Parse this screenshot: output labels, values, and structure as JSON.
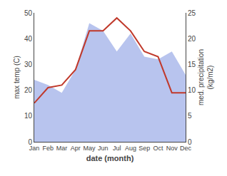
{
  "chart_data": {
    "type": "line",
    "categories": [
      "Jan",
      "Feb",
      "Mar",
      "Apr",
      "May",
      "Jun",
      "Jul",
      "Aug",
      "Sep",
      "Oct",
      "Nov",
      "Dec"
    ],
    "series": [
      {
        "type": "area",
        "color": "#b8c4ee",
        "values": [
          24,
          22,
          19,
          28,
          46,
          43,
          35,
          42,
          33,
          32,
          35,
          26
        ]
      },
      {
        "type": "line",
        "color": "#c0392b",
        "values": [
          15,
          21,
          22,
          28,
          43,
          43,
          48,
          43,
          35,
          33,
          19,
          19
        ]
      }
    ],
    "x_label": "date (month)",
    "y_label": "max temp (C)",
    "y2_label": "med. precipitation\n(kg/m2)",
    "ylim": [
      0,
      50
    ],
    "yticks": [
      0,
      10,
      20,
      30,
      40,
      50
    ],
    "y2lim": [
      0,
      25
    ],
    "y2ticks": [
      0,
      5,
      10,
      15,
      20,
      25
    ],
    "grid": false
  }
}
